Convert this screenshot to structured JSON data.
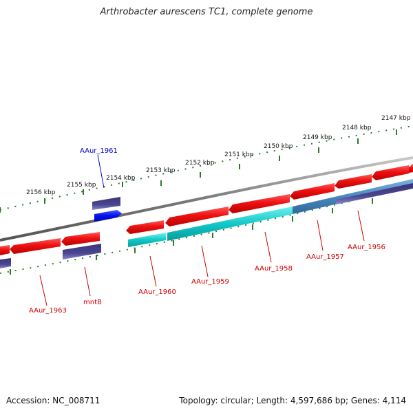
{
  "title": "Arthrobacter aurescens TC1, complete genome",
  "footer": {
    "accession": "Accession: NC_008711",
    "topology": "Topology: circular; Length: 4,597,686 bp; Genes: 4,114"
  },
  "ruler_ticks": [
    {
      "label": "2156 kbp"
    },
    {
      "label": "2155 kbp"
    },
    {
      "label": "2154 kbp"
    },
    {
      "label": "2153 kbp"
    },
    {
      "label": "2152 kbp"
    },
    {
      "label": "2151 kbp"
    },
    {
      "label": "2150 kbp"
    },
    {
      "label": "2149 kbp"
    },
    {
      "label": "2148 kbp"
    },
    {
      "label": "2147 kbp"
    }
  ],
  "gene_labels": [
    {
      "text": "AAur_1961",
      "color": "#0000cc"
    },
    {
      "text": "AAur_1963",
      "color": "#cc0000"
    },
    {
      "text": "mntB",
      "color": "#cc0000"
    },
    {
      "text": "AAur_1960",
      "color": "#cc0000"
    },
    {
      "text": "AAur_1959",
      "color": "#cc0000"
    },
    {
      "text": "AAur_1958",
      "color": "#cc0000"
    },
    {
      "text": "AAur_1957",
      "color": "#cc0000"
    },
    {
      "text": "AAur_1956",
      "color": "#cc0000"
    }
  ],
  "colors": {
    "cds_red": "#ee1111",
    "feature_cyan": "#11c8c8",
    "feature_navy": "#4a4690",
    "feature_blue": "#0011ee",
    "feature_steelblue": "#4a88bb",
    "ruler_green": "#2a7a2a",
    "backbone_gray": "#7a7a7a"
  }
}
